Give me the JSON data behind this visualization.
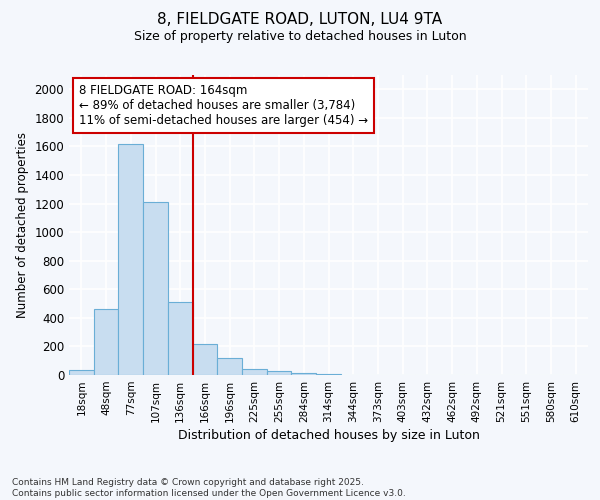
{
  "title1": "8, FIELDGATE ROAD, LUTON, LU4 9TA",
  "title2": "Size of property relative to detached houses in Luton",
  "xlabel": "Distribution of detached houses by size in Luton",
  "ylabel": "Number of detached properties",
  "categories": [
    "18sqm",
    "48sqm",
    "77sqm",
    "107sqm",
    "136sqm",
    "166sqm",
    "196sqm",
    "225sqm",
    "255sqm",
    "284sqm",
    "314sqm",
    "344sqm",
    "373sqm",
    "403sqm",
    "432sqm",
    "462sqm",
    "492sqm",
    "521sqm",
    "551sqm",
    "580sqm",
    "610sqm"
  ],
  "values": [
    35,
    460,
    1620,
    1210,
    510,
    220,
    120,
    45,
    25,
    15,
    5,
    0,
    0,
    0,
    0,
    0,
    0,
    0,
    0,
    0,
    0
  ],
  "bar_color": "#c8ddf0",
  "bar_edge_color": "#6aaed6",
  "vline_index": 5,
  "vline_color": "#cc0000",
  "annotation_text": "8 FIELDGATE ROAD: 164sqm\n← 89% of detached houses are smaller (3,784)\n11% of semi-detached houses are larger (454) →",
  "annotation_box_color": "white",
  "annotation_box_edge": "#cc0000",
  "ylim": [
    0,
    2100
  ],
  "yticks": [
    0,
    200,
    400,
    600,
    800,
    1000,
    1200,
    1400,
    1600,
    1800,
    2000
  ],
  "footnote": "Contains HM Land Registry data © Crown copyright and database right 2025.\nContains public sector information licensed under the Open Government Licence v3.0.",
  "bg_color": "#f4f7fc",
  "grid_color": "#ffffff"
}
